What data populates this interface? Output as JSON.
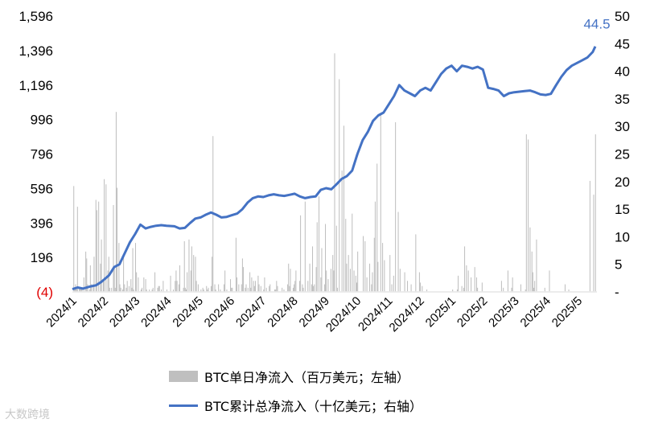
{
  "chart_data": {
    "type": "bar+line",
    "left_axis": {
      "ticks": [
        "1,596",
        "1,396",
        "1,196",
        "996",
        "796",
        "596",
        "396",
        "196",
        "(4)"
      ],
      "values": [
        1596,
        1396,
        1196,
        996,
        796,
        596,
        396,
        196,
        -4
      ],
      "range": [
        -4,
        1596
      ]
    },
    "right_axis": {
      "ticks": [
        "50",
        "45",
        "40",
        "35",
        "30",
        "25",
        "20",
        "15",
        "10",
        "5",
        "-"
      ],
      "values": [
        50,
        45,
        40,
        35,
        30,
        25,
        20,
        15,
        10,
        5,
        0
      ],
      "range": [
        0,
        50
      ]
    },
    "x_ticks": [
      "2024/1",
      "2024/2",
      "2024/3",
      "2024/4",
      "2024/5",
      "2024/6",
      "2024/7",
      "2024/8",
      "2024/9",
      "2024/10",
      "2024/11",
      "2024/12",
      "2025/1",
      "2025/2",
      "2025/3",
      "2025/4",
      "2025/5"
    ],
    "series": [
      {
        "name": "BTC单日净流入（百万美元；左轴）",
        "type": "bar",
        "axis": "left",
        "color": "#bfbfbf",
        "values": [
          0,
          610,
          10,
          40,
          20,
          490,
          0,
          20,
          15,
          10,
          20,
          0,
          80,
          0,
          230,
          190,
          40,
          0,
          10,
          150,
          40,
          0,
          40,
          200,
          0,
          530,
          470,
          0,
          520,
          0,
          160,
          300,
          0,
          70,
          650,
          0,
          620,
          0,
          120,
          200,
          20,
          0,
          20,
          0,
          500,
          140,
          20,
          1040,
          600,
          0,
          280,
          40,
          20,
          0,
          10,
          200,
          40,
          0,
          20,
          60,
          0,
          30,
          0,
          70,
          20,
          250,
          10,
          0,
          280,
          110,
          0,
          80,
          0,
          0,
          10,
          20,
          0,
          80,
          0,
          70,
          10,
          0,
          0,
          10,
          0,
          0,
          10,
          20,
          0,
          110,
          0,
          0,
          20,
          30,
          30,
          0,
          10,
          0,
          60,
          0,
          0,
          0,
          10,
          0,
          0,
          0,
          90,
          0,
          0,
          10,
          0,
          60,
          120,
          60,
          0,
          40,
          150,
          0,
          0,
          0,
          20,
          290,
          20,
          10,
          110,
          0,
          300,
          0,
          120,
          260,
          0,
          210,
          0,
          200,
          60,
          0,
          40,
          0,
          0,
          10,
          0,
          20,
          10,
          0,
          0,
          30,
          10,
          20,
          0,
          0,
          30,
          200,
          900,
          0,
          40,
          10,
          0,
          0,
          40,
          0,
          10,
          0,
          0,
          0,
          40,
          120,
          0,
          10,
          0,
          0,
          0,
          70,
          20,
          20,
          0,
          0,
          0,
          310,
          80,
          0,
          40,
          0,
          0,
          40,
          190,
          140,
          0,
          20,
          40,
          0,
          20,
          0,
          110,
          20,
          80,
          0,
          60,
          30,
          60,
          0,
          0,
          90,
          40,
          0,
          30,
          0,
          0,
          10,
          80,
          0,
          20,
          0,
          0,
          30,
          40,
          0,
          0,
          0,
          0,
          10,
          10,
          60,
          30,
          0,
          0,
          0,
          0,
          20,
          0,
          10,
          0,
          0,
          0,
          40,
          160,
          30,
          130,
          0,
          0,
          20,
          40,
          60,
          120,
          0,
          0,
          0,
          60,
          440,
          0,
          40,
          20,
          0,
          520,
          0,
          0,
          60,
          0,
          160,
          0,
          40,
          260,
          30,
          40,
          0,
          140,
          400,
          0,
          550,
          0,
          80,
          250,
          0,
          0,
          40,
          390,
          120,
          0,
          70,
          0,
          0,
          130,
          0,
          210,
          120,
          1380,
          0,
          380,
          20,
          0,
          1230,
          0,
          0,
          700,
          0,
          960,
          0,
          420,
          160,
          0,
          210,
          0,
          130,
          0,
          450,
          0,
          120,
          0,
          90,
          50,
          230,
          0,
          0,
          0,
          0,
          0,
          320,
          0,
          290,
          0,
          80,
          0,
          0,
          160,
          0,
          40,
          110,
          0,
          310,
          520,
          0,
          740,
          170,
          0,
          0,
          1020,
          0,
          280,
          0,
          180,
          0,
          0,
          0,
          0,
          0,
          210,
          0,
          40,
          0,
          90,
          0,
          980,
          0,
          0,
          460,
          0,
          130,
          0,
          0,
          0,
          0,
          110,
          0,
          0,
          60,
          0,
          0,
          0,
          40,
          0,
          0,
          0,
          0,
          330,
          0,
          0,
          0,
          110,
          50,
          0,
          30,
          0,
          0,
          0,
          0,
          10,
          0,
          0,
          0,
          0,
          0,
          0,
          0,
          0,
          0,
          0,
          0,
          0,
          0,
          0,
          0,
          0,
          0,
          0,
          0,
          0,
          0,
          0,
          0,
          0,
          0,
          0,
          0,
          10,
          0,
          0,
          0,
          0,
          10,
          90,
          0,
          0,
          0,
          30,
          0,
          20,
          260,
          0,
          150,
          0,
          120,
          0,
          0,
          80,
          0,
          0,
          0,
          140,
          0,
          80,
          20,
          0,
          0,
          0,
          0,
          50,
          0,
          0,
          0,
          0,
          0,
          0,
          0,
          0,
          0,
          0,
          0,
          0,
          0,
          0,
          0,
          0,
          0,
          0,
          0,
          0,
          60,
          0,
          20,
          0,
          0,
          0,
          0,
          120,
          0,
          0,
          0,
          20,
          80,
          0,
          0,
          0,
          0,
          0,
          0,
          0,
          0,
          40,
          0,
          0,
          0,
          0,
          10,
          910,
          0,
          880,
          0,
          370,
          0,
          230,
          110,
          20,
          60,
          0,
          300,
          0,
          0,
          0,
          0,
          0,
          0,
          0,
          0,
          20,
          0,
          0,
          0,
          0,
          120,
          0,
          0,
          0,
          0,
          0,
          0,
          0,
          0,
          0,
          0,
          0,
          0,
          0,
          0,
          0,
          0,
          40,
          0,
          0,
          0,
          10,
          0,
          0,
          0,
          0,
          0,
          0,
          0,
          0,
          0,
          0,
          0,
          0,
          0,
          0,
          0,
          0,
          0,
          0,
          0,
          0,
          0,
          0,
          640,
          0,
          0,
          0,
          560,
          0,
          910,
          0
        ]
      },
      {
        "name": "BTC累计总净流入（十亿美元；右轴）",
        "type": "line",
        "axis": "right",
        "color": "#4472c4",
        "x_fraction": [
          0.0,
          0.01,
          0.02,
          0.035,
          0.045,
          0.055,
          0.07,
          0.08,
          0.09,
          0.1,
          0.11,
          0.12,
          0.13,
          0.14,
          0.15,
          0.16,
          0.17,
          0.18,
          0.195,
          0.205,
          0.215,
          0.225,
          0.235,
          0.245,
          0.255,
          0.265,
          0.275,
          0.285,
          0.295,
          0.305,
          0.315,
          0.325,
          0.335,
          0.345,
          0.355,
          0.365,
          0.375,
          0.385,
          0.395,
          0.405,
          0.415,
          0.425,
          0.435,
          0.445,
          0.455,
          0.465,
          0.475,
          0.485,
          0.495,
          0.505,
          0.515,
          0.525,
          0.535,
          0.545,
          0.555,
          0.565,
          0.575,
          0.585,
          0.595,
          0.605,
          0.615,
          0.625,
          0.635,
          0.645,
          0.655,
          0.665,
          0.675,
          0.685,
          0.695,
          0.705,
          0.715,
          0.725,
          0.735,
          0.745,
          0.755,
          0.765,
          0.775,
          0.785,
          0.795,
          0.805,
          0.815,
          0.825,
          0.835,
          0.845,
          0.855,
          0.865,
          0.875,
          0.885,
          0.895,
          0.905,
          0.915,
          0.925,
          0.935,
          0.945,
          0.955,
          0.965,
          0.975,
          0.985,
          0.995,
          1.0
        ],
        "values": [
          0.5,
          0.8,
          0.6,
          1.0,
          1.2,
          1.8,
          3.0,
          4.5,
          5.0,
          7.0,
          9.0,
          10.5,
          12.2,
          11.5,
          11.8,
          12.0,
          12.1,
          12.0,
          11.9,
          11.5,
          11.6,
          12.5,
          13.3,
          13.5,
          14.0,
          14.4,
          14.0,
          13.5,
          13.6,
          13.9,
          14.2,
          15.0,
          16.2,
          17.0,
          17.3,
          17.2,
          17.5,
          17.7,
          17.5,
          17.4,
          17.6,
          17.8,
          17.3,
          17.0,
          17.2,
          17.3,
          18.5,
          18.8,
          18.6,
          19.5,
          20.5,
          21.0,
          22.0,
          25.0,
          27.5,
          29.0,
          31.0,
          32.0,
          32.5,
          34.0,
          35.5,
          37.5,
          36.5,
          36.0,
          35.5,
          36.5,
          37.0,
          36.5,
          38.0,
          39.5,
          40.5,
          41.0,
          40.0,
          41.0,
          40.8,
          40.5,
          40.8,
          40.3,
          37.0,
          36.8,
          36.5,
          35.5,
          36.0,
          36.2,
          36.3,
          36.4,
          36.5,
          36.2,
          35.8,
          35.7,
          35.9,
          37.5,
          39.0,
          40.2,
          41.0,
          41.5,
          42.0,
          42.5,
          43.5,
          44.5
        ]
      }
    ],
    "end_label": "44.5"
  },
  "legend": {
    "bar_label": "BTC单日净流入（百万美元；左轴）",
    "line_label": "BTC累计总净流入（十亿美元；右轴）"
  },
  "watermark": "大数跨境"
}
